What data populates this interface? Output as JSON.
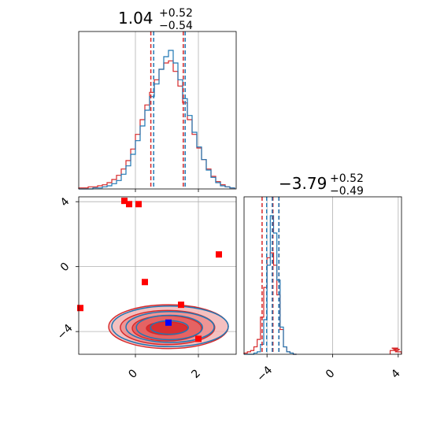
{
  "chart_data": {
    "type": "corner",
    "colors": {
      "series_a": "#1f77b4",
      "series_b": "#d62728",
      "marker_red": "#ff0000",
      "marker_blue": "#0000ff",
      "grid": "#b0b0b0"
    },
    "params": [
      {
        "title_main": "1.04",
        "title_plus": "+0.52",
        "title_minus": "−0.54",
        "median": 1.04,
        "plus": 0.52,
        "minus": 0.54
      },
      {
        "title_main": "−3.79",
        "title_plus": "+0.52",
        "title_minus": "−0.49",
        "median": -3.79,
        "plus": 0.52,
        "minus": 0.49
      }
    ],
    "hist_x": {
      "xlim": [
        -1.8,
        3.2
      ],
      "xticks": [
        0,
        2
      ],
      "quantile_lines_blue": [
        0.58,
        1.58
      ],
      "quantile_lines_red": [
        0.49,
        1.52
      ],
      "median_blue": 1.05,
      "median_red": 1.03,
      "bins": [
        -1.8,
        -1.65,
        -1.5,
        -1.35,
        -1.2,
        -1.05,
        -0.9,
        -0.75,
        -0.6,
        -0.45,
        -0.3,
        -0.15,
        0.0,
        0.15,
        0.3,
        0.45,
        0.6,
        0.75,
        0.9,
        1.05,
        1.2,
        1.35,
        1.5,
        1.65,
        1.8,
        1.95,
        2.1,
        2.25,
        2.4,
        2.55,
        2.7,
        2.85,
        3.0,
        3.15
      ],
      "series": [
        {
          "name": "",
          "color": "#1f77b4",
          "counts": [
            0,
            0,
            0,
            1,
            1,
            2,
            3,
            5,
            8,
            14,
            22,
            33,
            46,
            60,
            75,
            88,
            100,
            114,
            126,
            132,
            120,
            104,
            86,
            70,
            54,
            40,
            28,
            18,
            11,
            6,
            3,
            2,
            1
          ]
        },
        {
          "name": "",
          "color": "#d62728",
          "counts": [
            1,
            1,
            2,
            2,
            3,
            4,
            6,
            9,
            13,
            19,
            27,
            38,
            52,
            66,
            80,
            92,
            104,
            114,
            120,
            122,
            112,
            98,
            82,
            66,
            52,
            39,
            28,
            19,
            12,
            7,
            4,
            2,
            1
          ]
        }
      ]
    },
    "hist_y": {
      "xlim": [
        -5.4,
        4.2
      ],
      "xticks": [
        -4,
        0,
        4
      ],
      "quantile_lines_blue": [
        -4.02,
        -3.28
      ],
      "quantile_lines_red": [
        -4.3,
        -3.27
      ],
      "median_blue": -3.68,
      "median_red": -3.64,
      "bins": [
        -5.4,
        -5.2,
        -5.0,
        -4.8,
        -4.6,
        -4.4,
        -4.2,
        -4.0,
        -3.8,
        -3.6,
        -3.4,
        -3.2,
        -3.0,
        -2.8,
        -2.6,
        -2.4,
        -2.2
      ],
      "series": [
        {
          "name": "",
          "color": "#1f77b4",
          "counts": [
            0,
            0,
            0,
            1,
            2,
            8,
            28,
            72,
            112,
            98,
            60,
            22,
            6,
            2,
            1,
            0
          ]
        },
        {
          "name": "",
          "color": "#d62728",
          "counts": [
            1,
            2,
            3,
            6,
            12,
            30,
            54,
            78,
            82,
            72,
            48,
            20,
            6,
            2,
            1,
            0
          ]
        }
      ],
      "far_bump": {
        "x": [
          3.7,
          3.8,
          3.9,
          4.0
        ],
        "counts": [
          3,
          5,
          4,
          2
        ]
      }
    },
    "scatter": {
      "xlim": [
        -1.8,
        3.2
      ],
      "ylim": [
        -5.4,
        4.3
      ],
      "xticks": [
        0,
        2
      ],
      "yticks": [
        -4,
        0,
        4
      ],
      "contours_blue": [
        {
          "cx": 1.08,
          "cy": -3.75,
          "rx": 0.6,
          "ry": 0.42
        },
        {
          "cx": 1.08,
          "cy": -3.75,
          "rx": 1.05,
          "ry": 0.75
        },
        {
          "cx": 1.1,
          "cy": -3.72,
          "rx": 1.4,
          "ry": 0.95
        },
        {
          "cx": 1.1,
          "cy": -3.68,
          "rx": 1.85,
          "ry": 1.25
        }
      ],
      "contours_red": [
        {
          "cx": 1.0,
          "cy": -3.8,
          "rx": 0.65,
          "ry": 0.4
        },
        {
          "cx": 1.0,
          "cy": -3.8,
          "rx": 1.1,
          "ry": 0.78
        },
        {
          "cx": 1.02,
          "cy": -3.75,
          "rx": 1.5,
          "ry": 1.05
        },
        {
          "cx": 1.05,
          "cy": -3.7,
          "rx": 1.9,
          "ry": 1.35
        }
      ],
      "markers_red": [
        {
          "x": -0.35,
          "y": 4.05
        },
        {
          "x": -0.2,
          "y": 3.85
        },
        {
          "x": 0.1,
          "y": 3.85
        },
        {
          "x": 2.65,
          "y": 0.75
        },
        {
          "x": 0.3,
          "y": -0.95
        },
        {
          "x": -1.75,
          "y": -2.55
        },
        {
          "x": 1.45,
          "y": -2.35
        },
        {
          "x": 2.0,
          "y": -4.45
        }
      ],
      "marker_blue": {
        "x": 1.05,
        "y": -3.45
      }
    }
  }
}
